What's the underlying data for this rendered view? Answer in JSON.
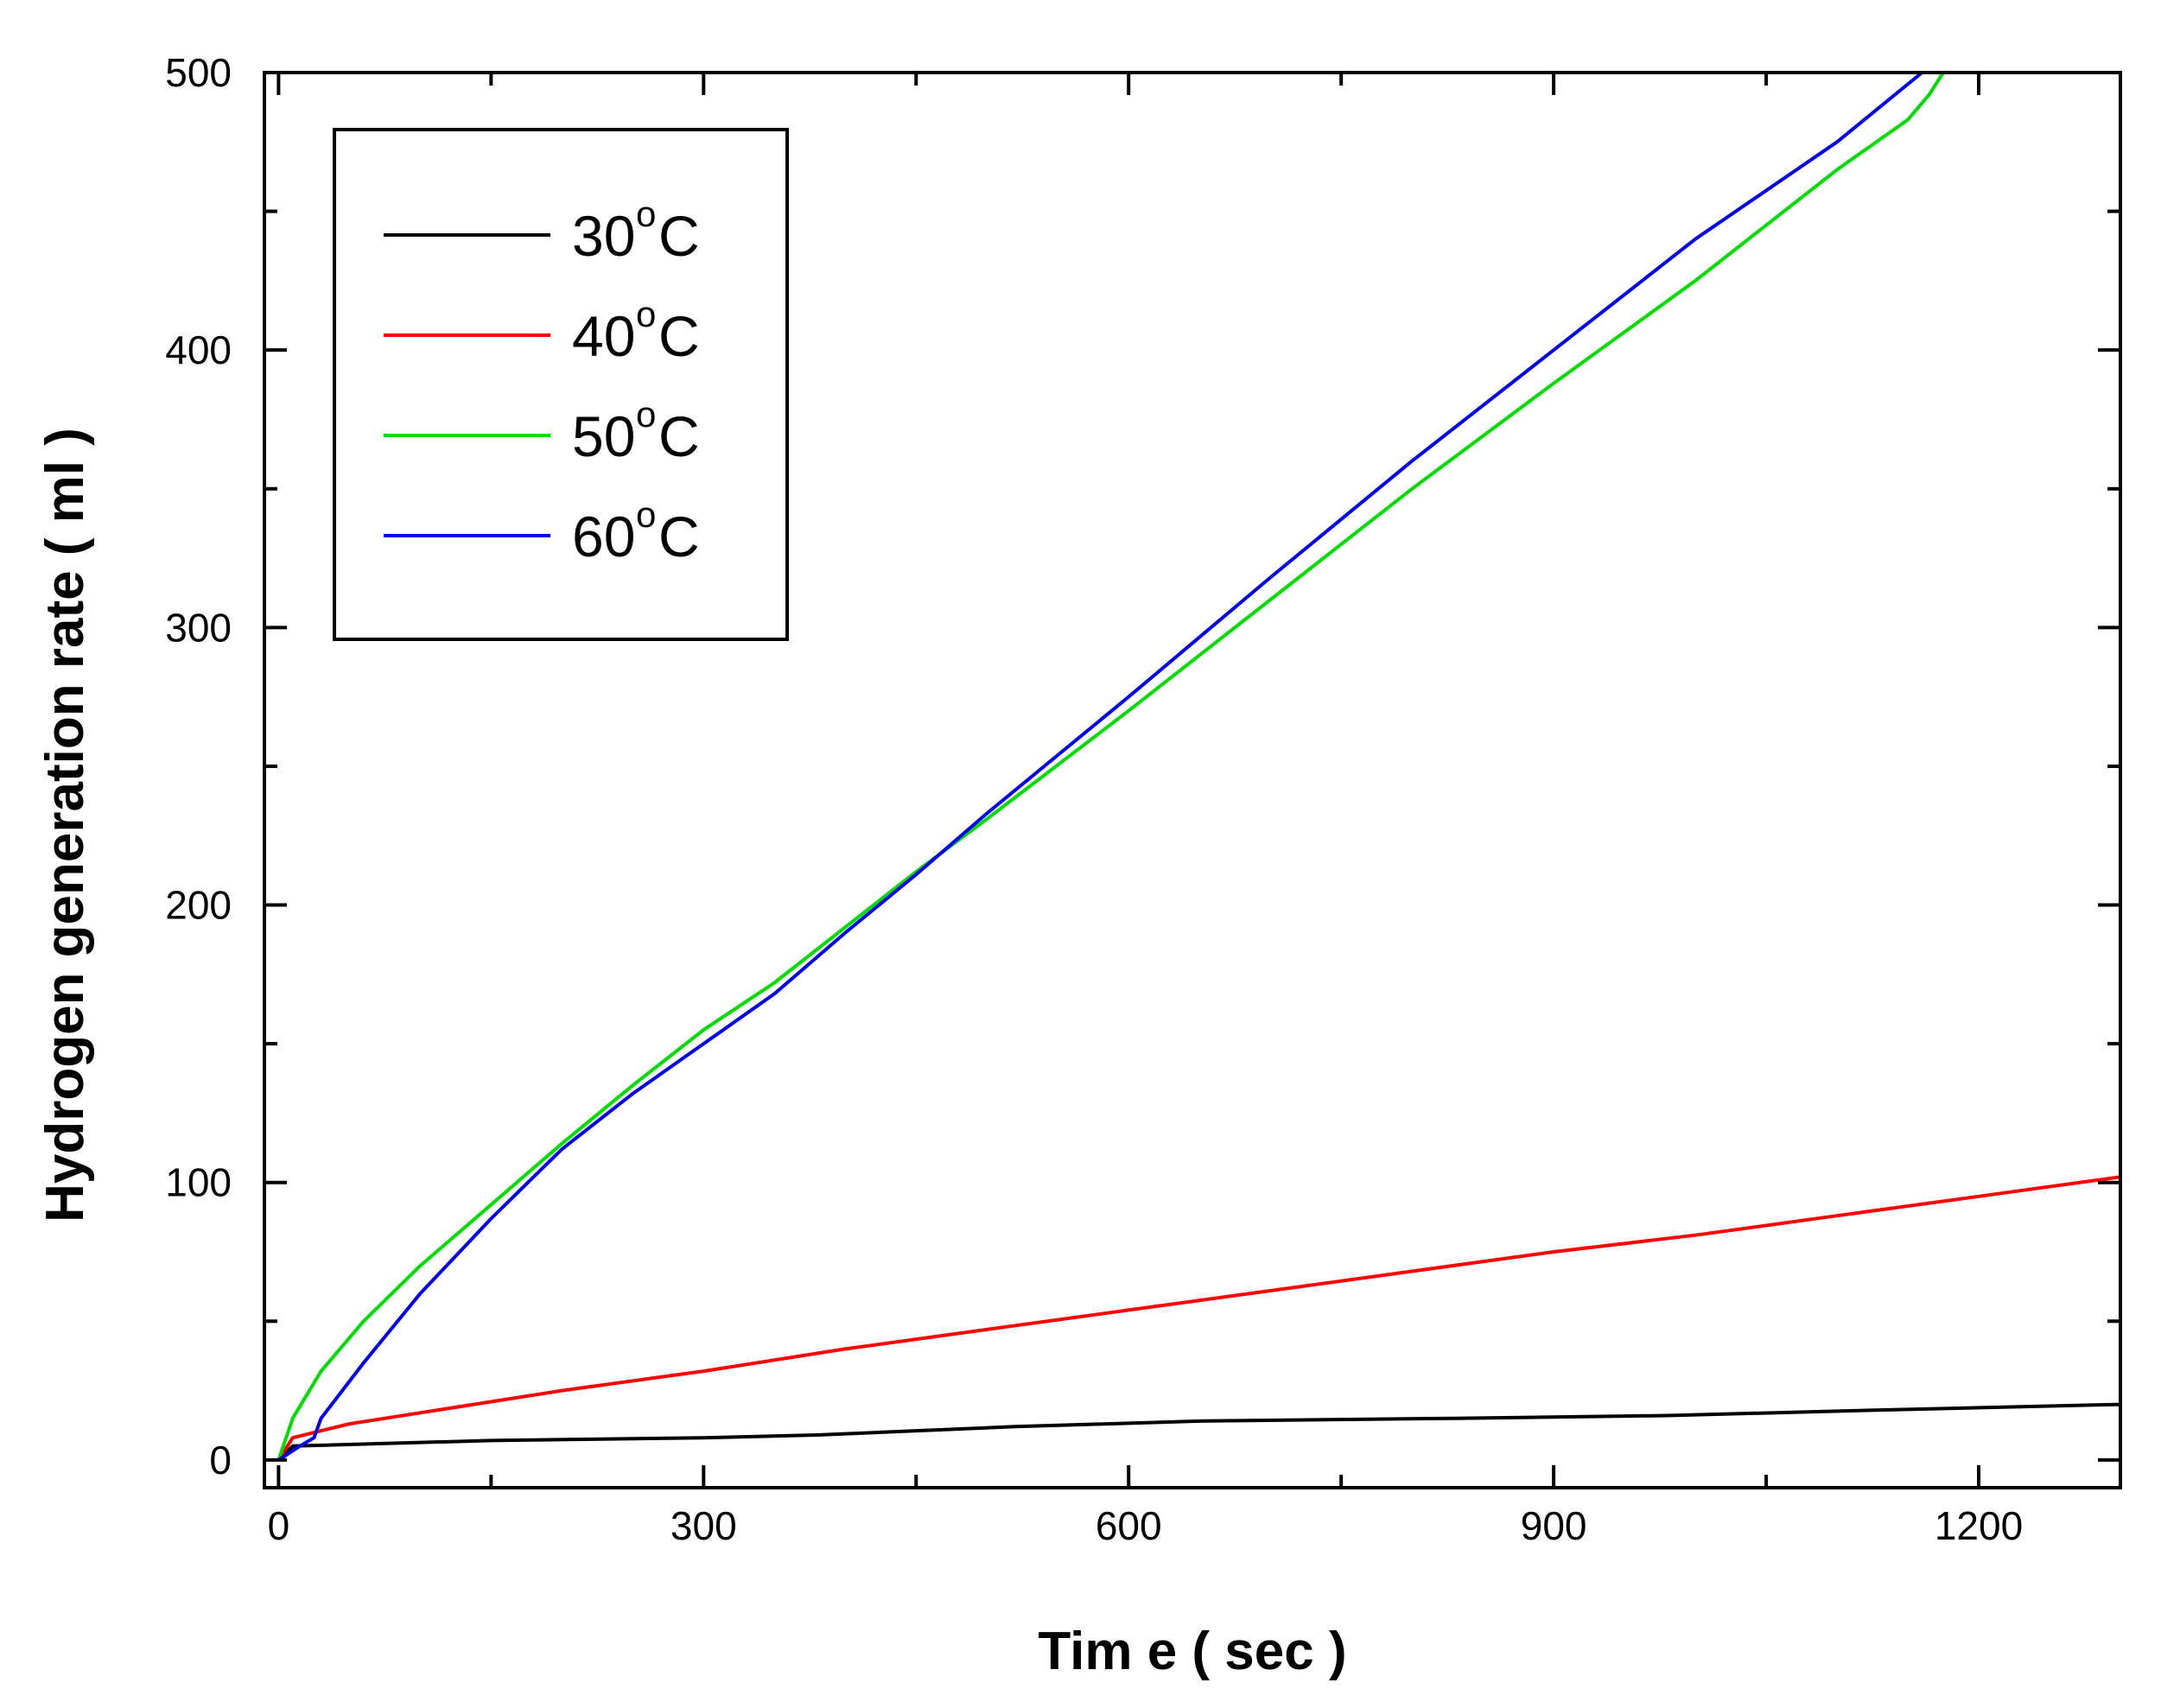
{
  "chart_data": {
    "type": "line",
    "title": "",
    "xlabel": "Tim e ( sec )",
    "ylabel": "Hydrogen generation rate ( ml )",
    "xlim": [
      -10,
      1300
    ],
    "ylim": [
      -10,
      500
    ],
    "xticks": [
      0,
      300,
      600,
      900,
      1200
    ],
    "yticks": [
      0,
      100,
      200,
      300,
      400,
      500
    ],
    "x_minor_step": 150,
    "y_minor_step": 50,
    "grid": false,
    "legend_position": "top-left",
    "legend_degree": "o",
    "legend_unit": "C",
    "series": [
      {
        "name": "30",
        "color": "#000000",
        "x": [
          0,
          10,
          150,
          300,
          380,
          520,
          650,
          830,
          980,
          1130,
          1300
        ],
        "y": [
          0,
          5,
          7,
          8,
          9,
          12,
          14,
          15,
          16,
          18,
          20
        ]
      },
      {
        "name": "40",
        "color": "#ff0000",
        "x": [
          0,
          10,
          50,
          100,
          200,
          300,
          400,
          500,
          600,
          700,
          800,
          900,
          1000,
          1100,
          1200,
          1300
        ],
        "y": [
          0,
          8,
          13,
          17,
          25,
          32,
          40,
          47,
          54,
          61,
          68,
          75,
          81,
          88,
          95,
          102
        ]
      },
      {
        "name": "50",
        "color": "#00dd00",
        "x": [
          0,
          10,
          30,
          60,
          100,
          150,
          200,
          250,
          300,
          350,
          400,
          450,
          500,
          600,
          700,
          800,
          900,
          1000,
          1100,
          1150,
          1165,
          1175
        ],
        "y": [
          0,
          15,
          32,
          50,
          70,
          92,
          114,
          135,
          155,
          172,
          192,
          212,
          231,
          270,
          310,
          350,
          388,
          425,
          465,
          483,
          492,
          500
        ]
      },
      {
        "name": "60",
        "color": "#0000ee",
        "x": [
          0,
          15,
          25,
          30,
          60,
          100,
          150,
          200,
          250,
          300,
          350,
          400,
          450,
          500,
          600,
          700,
          800,
          900,
          1000,
          1100,
          1160
        ],
        "y": [
          0,
          5,
          8,
          15,
          35,
          60,
          87,
          112,
          132,
          150,
          168,
          190,
          211,
          233,
          275,
          318,
          360,
          400,
          440,
          475,
          500
        ]
      }
    ]
  }
}
